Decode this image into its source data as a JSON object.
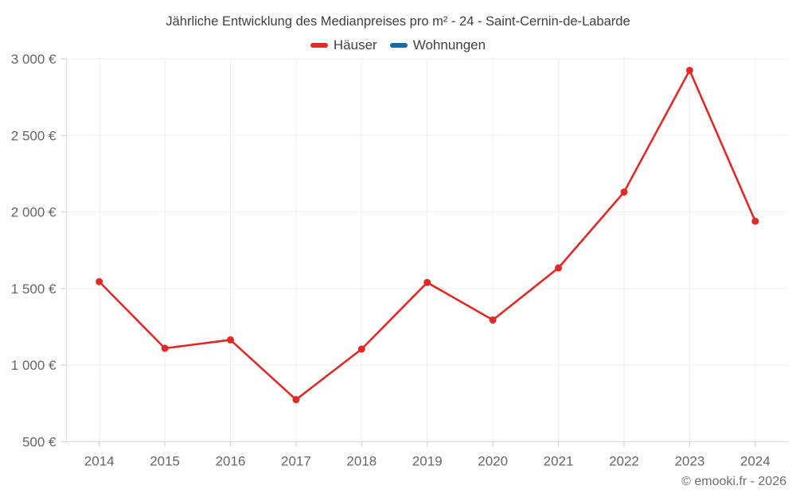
{
  "chart": {
    "title": "Jährliche Entwicklung des Medianpreises pro m² - 24 - Saint-Cernin-de-Labarde",
    "legend": [
      {
        "label": "Häuser",
        "color": "#e12a26"
      },
      {
        "label": "Wohnungen",
        "color": "#0e6fa6"
      }
    ]
  },
  "footer": {
    "text": "© emooki.fr - 2026"
  },
  "chart_data": {
    "type": "line",
    "title": "Jährliche Entwicklung des Medianpreises pro m² - 24 - Saint-Cernin-de-Labarde",
    "categories": [
      "2014",
      "2015",
      "2016",
      "2017",
      "2018",
      "2019",
      "2020",
      "2021",
      "2022",
      "2023",
      "2024"
    ],
    "series": [
      {
        "name": "Häuser",
        "color": "#e12a26",
        "values": [
          1545,
          1110,
          1165,
          775,
          1105,
          1540,
          1295,
          1635,
          2130,
          2925,
          1940
        ]
      },
      {
        "name": "Wohnungen",
        "color": "#0e6fa6",
        "values": []
      }
    ],
    "xlabel": "",
    "ylabel": "",
    "ylim": [
      500,
      3000
    ],
    "y_ticks": [
      {
        "value": 500,
        "label": "500 €"
      },
      {
        "value": 1000,
        "label": "1 000 €"
      },
      {
        "value": 1500,
        "label": "1 500 €"
      },
      {
        "value": 2000,
        "label": "2 000 €"
      },
      {
        "value": 2500,
        "label": "2 500 €"
      },
      {
        "value": 3000,
        "label": "3 000 €"
      }
    ],
    "grid": true,
    "legend_position": "top",
    "colors": {
      "grid": "#efefef",
      "axis": "#dedede",
      "tick": "#cfcfcf",
      "tick_label": "#666666"
    }
  }
}
